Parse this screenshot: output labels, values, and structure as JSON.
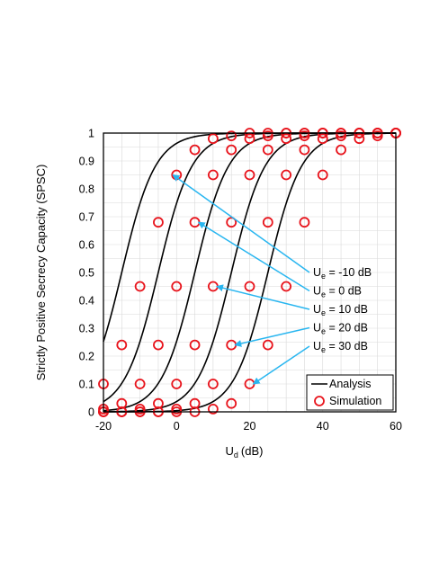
{
  "chart_data": {
    "type": "line",
    "xlabel": "U",
    "xlabel_sub": "d",
    "xlabel_unit": "(dB)",
    "ylabel": "Strictly Positive Secrecy Capacity (SPSC)",
    "xlim": [
      -20,
      60
    ],
    "ylim": [
      0,
      1
    ],
    "x_ticks": [
      "-20",
      "0",
      "20",
      "40",
      "60"
    ],
    "y_ticks": [
      "0",
      "0.1",
      "0.2",
      "0.3",
      "0.4",
      "0.5",
      "0.6",
      "0.7",
      "0.8",
      "0.9",
      "1"
    ],
    "grid": true,
    "legend": {
      "position": "bottom-right",
      "entries": [
        {
          "label": "Analysis",
          "style": "line",
          "color": "#000000"
        },
        {
          "label": "Simulation",
          "style": "circle",
          "color": "#e8141c"
        }
      ]
    },
    "sim_x": [
      -20,
      -15,
      -10,
      -5,
      0,
      5,
      10,
      15,
      20,
      25,
      30,
      35,
      40,
      45,
      50,
      55,
      60
    ],
    "series": [
      {
        "ue_db": -10,
        "values": [
          0.1,
          0.24,
          0.45,
          0.68,
          0.85,
          0.94,
          0.98,
          0.99,
          1,
          1,
          1,
          1,
          1,
          1,
          1,
          1,
          1
        ]
      },
      {
        "ue_db": 0,
        "values": [
          0.01,
          0.03,
          0.1,
          0.24,
          0.45,
          0.68,
          0.85,
          0.94,
          0.98,
          0.99,
          1,
          1,
          1,
          1,
          1,
          1,
          1
        ]
      },
      {
        "ue_db": 10,
        "values": [
          0,
          0,
          0.01,
          0.03,
          0.1,
          0.24,
          0.45,
          0.68,
          0.85,
          0.94,
          0.98,
          0.99,
          1,
          1,
          1,
          1,
          1
        ]
      },
      {
        "ue_db": 20,
        "values": [
          0,
          0,
          0,
          0,
          0.01,
          0.03,
          0.1,
          0.24,
          0.45,
          0.68,
          0.85,
          0.94,
          0.98,
          0.99,
          1,
          1,
          1
        ]
      },
      {
        "ue_db": 30,
        "values": [
          0,
          0,
          0,
          0,
          0,
          0,
          0.01,
          0.03,
          0.1,
          0.24,
          0.45,
          0.68,
          0.85,
          0.94,
          0.98,
          0.99,
          1
        ]
      }
    ],
    "annotations": [
      {
        "label": "U",
        "sub": "e",
        "rest": " = -10 dB",
        "x": -1,
        "y": 0.85
      },
      {
        "label": "U",
        "sub": "e",
        "rest": " = 0 dB",
        "x": 6,
        "y": 0.68
      },
      {
        "label": "U",
        "sub": "e",
        "rest": " = 10 dB",
        "x": 11,
        "y": 0.45
      },
      {
        "label": "U",
        "sub": "e",
        "rest": " = 20 dB",
        "x": 16,
        "y": 0.24
      },
      {
        "label": "U",
        "sub": "e",
        "rest": " = 30 dB",
        "x": 21,
        "y": 0.1
      }
    ],
    "colors": {
      "analysis": "#000000",
      "simulation": "#e8141c",
      "arrow": "#29b6f0",
      "grid": "#d9d9d9"
    }
  }
}
